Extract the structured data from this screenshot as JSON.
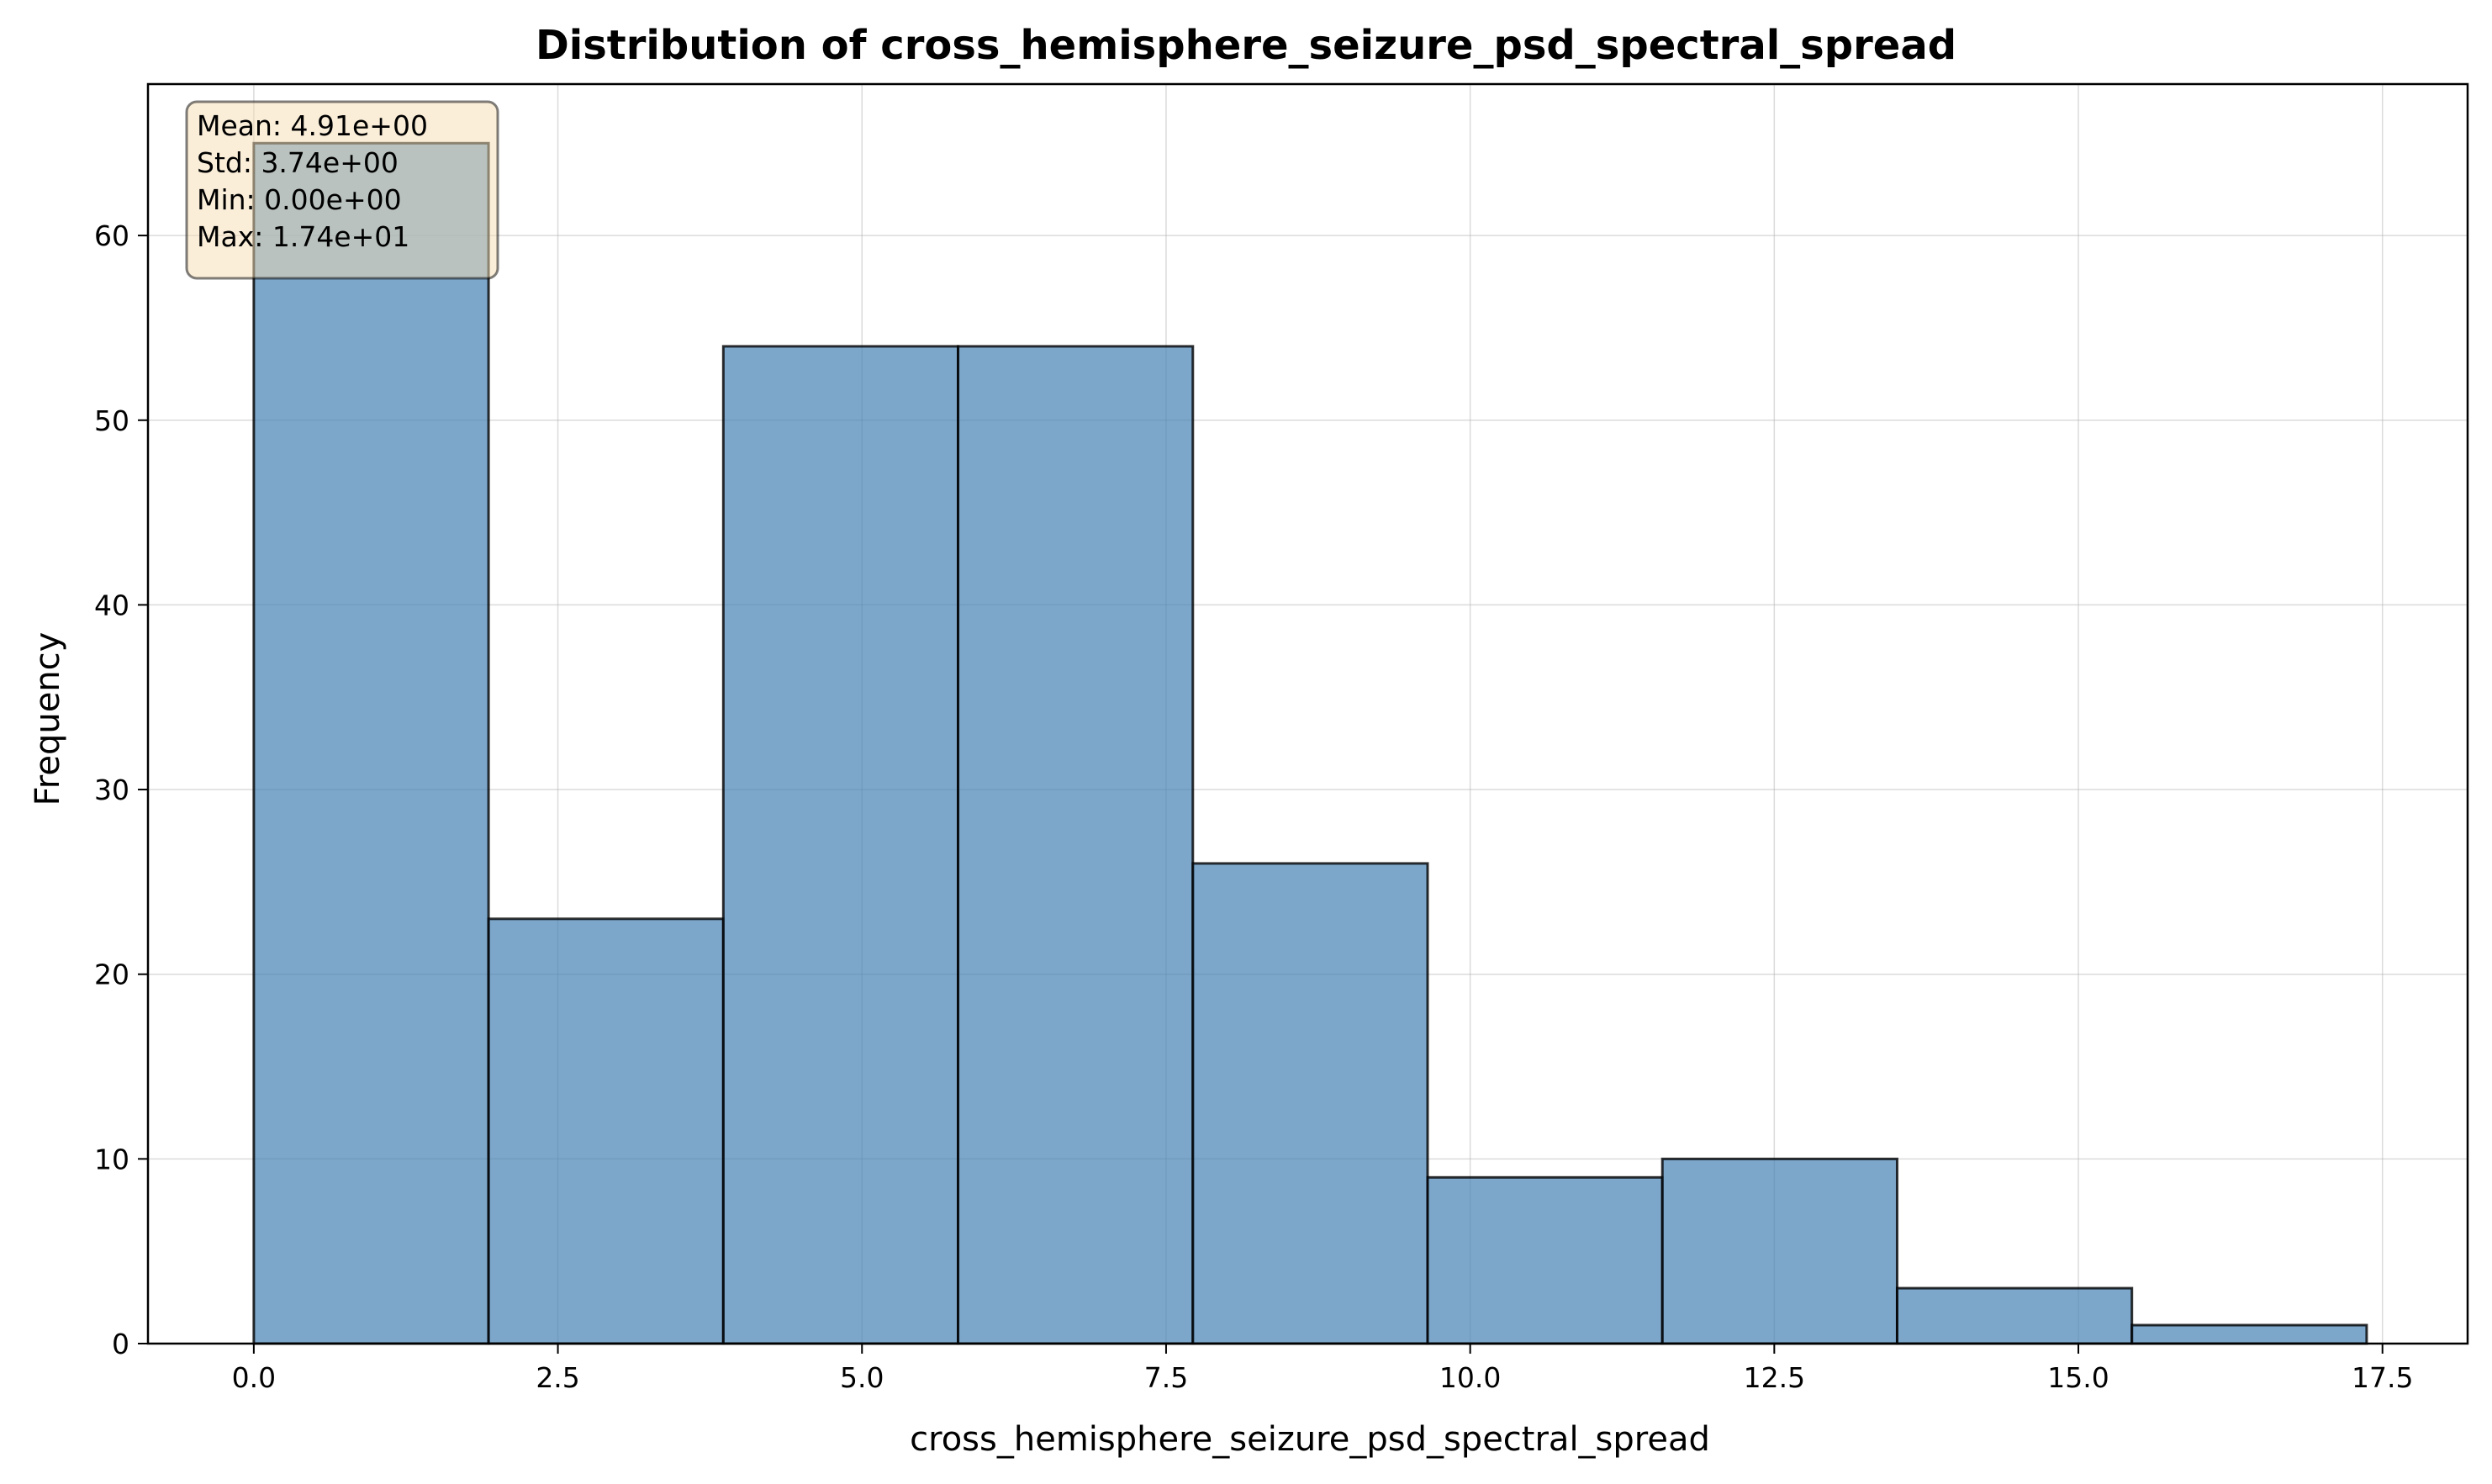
{
  "chart_data": {
    "type": "histogram",
    "title": "Distribution of cross_hemisphere_seizure_psd_spectral_spread",
    "xlabel": "cross_hemisphere_seizure_psd_spectral_spread",
    "ylabel": "Frequency",
    "xlim": [
      -0.87,
      18.2
    ],
    "ylim": [
      0,
      68.2
    ],
    "x_ticks": [
      0.0,
      2.5,
      5.0,
      7.5,
      10.0,
      12.5,
      15.0,
      17.5
    ],
    "x_tick_labels": [
      "0.0",
      "2.5",
      "5.0",
      "7.5",
      "10.0",
      "12.5",
      "15.0",
      "17.5"
    ],
    "y_ticks": [
      0,
      10,
      20,
      30,
      40,
      50,
      60
    ],
    "y_tick_labels": [
      "0",
      "10",
      "20",
      "30",
      "40",
      "50",
      "60"
    ],
    "bin_edges": [
      0.0,
      1.93,
      3.86,
      5.79,
      7.72,
      9.65,
      11.58,
      13.51,
      15.44,
      17.37
    ],
    "values": [
      65,
      23,
      54,
      54,
      26,
      9,
      10,
      3,
      1
    ],
    "grid": true,
    "bar_color": "#4682b4",
    "stats_box": {
      "placement": "top-left",
      "lines": [
        "Mean: 4.91e+00",
        "Std: 3.74e+00",
        "Min: 0.00e+00",
        "Max: 1.74e+01"
      ],
      "background": "#f5deb3"
    }
  }
}
